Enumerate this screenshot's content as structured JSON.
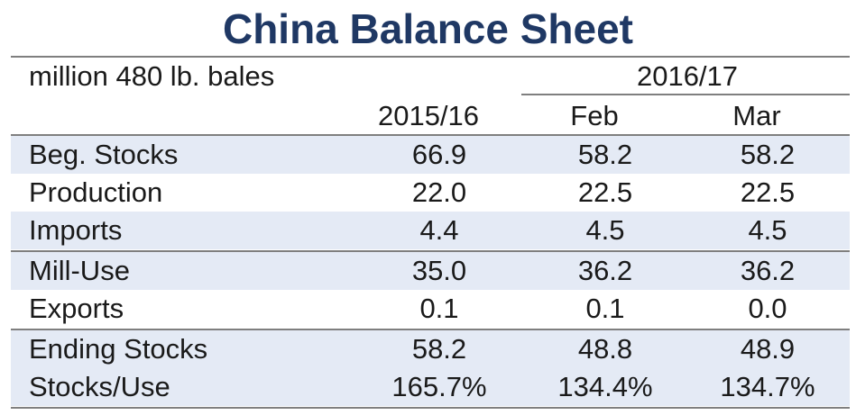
{
  "chart_data": {
    "type": "table",
    "title": "China Balance Sheet",
    "units": "million 480 lb. bales",
    "column_group": "2016/17",
    "columns": [
      "2015/16",
      "Feb",
      "Mar"
    ],
    "rows": [
      {
        "label": "Beg. Stocks",
        "values": [
          "66.9",
          "58.2",
          "58.2"
        ],
        "shaded": true
      },
      {
        "label": "Production",
        "values": [
          "22.0",
          "22.5",
          "22.5"
        ],
        "shaded": false
      },
      {
        "label": "Imports",
        "values": [
          "4.4",
          "4.5",
          "4.5"
        ],
        "shaded": true
      },
      {
        "label": "Mill-Use",
        "values": [
          "35.0",
          "36.2",
          "36.2"
        ],
        "shaded": true
      },
      {
        "label": "Exports",
        "values": [
          "0.1",
          "0.1",
          "0.0"
        ],
        "shaded": false
      },
      {
        "label": "Ending Stocks",
        "values": [
          "58.2",
          "48.8",
          "48.9"
        ],
        "shaded": true
      },
      {
        "label": "Stocks/Use",
        "values": [
          "165.7%",
          "134.4%",
          "134.7%"
        ],
        "shaded": true
      }
    ],
    "colors": {
      "title": "#1f3864",
      "shade": "#e4eaf5",
      "rule": "#7f7f7f"
    }
  }
}
